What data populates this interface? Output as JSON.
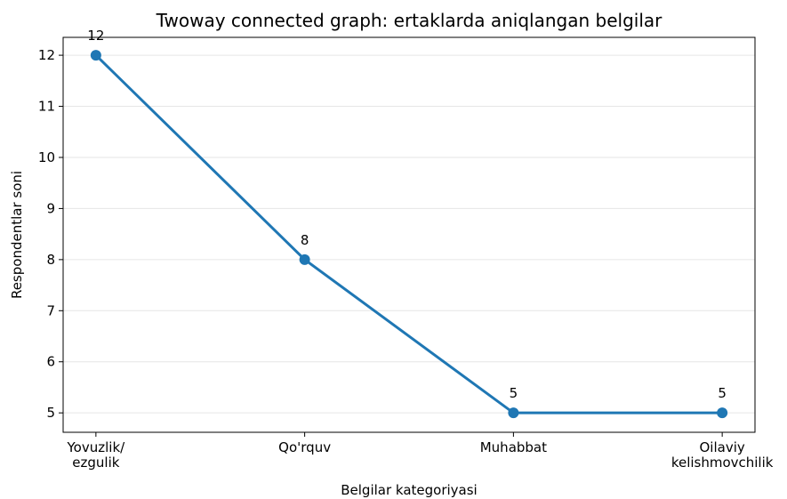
{
  "chart_data": {
    "type": "line",
    "title": "Twoway connected graph: ertaklarda aniqlangan belgilar",
    "x_label": "Belgilar kategoriyasi",
    "y_label": "Respondentlar soni",
    "categories": [
      "Yovuzlik/\nezgulik",
      "Qo'rquv",
      "Muhabbat",
      "Oilaviy\nkelishmovchilik"
    ],
    "values": [
      12,
      8,
      5,
      5
    ],
    "color": "#1f77b4",
    "ylim": [
      4.62,
      12.35
    ],
    "yticks": [
      5,
      6,
      7,
      8,
      9,
      10,
      11,
      12
    ],
    "grid": true
  }
}
